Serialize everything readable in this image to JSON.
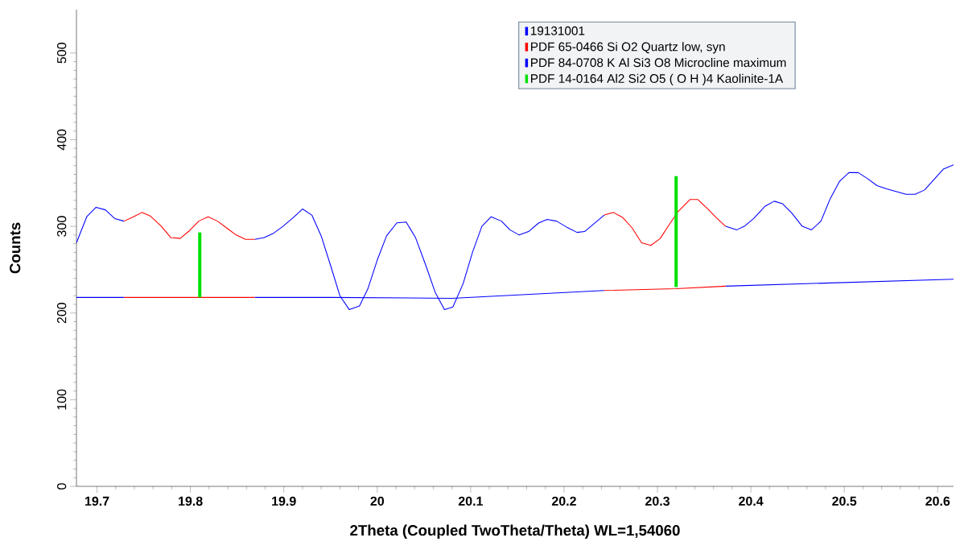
{
  "chart_data": {
    "type": "line",
    "xlabel": "2Theta (Coupled TwoTheta/Theta) WL=1,54060",
    "ylabel": "Counts",
    "xlim": [
      19.678,
      20.617
    ],
    "ylim": [
      0,
      550
    ],
    "xticks": [
      19.7,
      19.8,
      19.9,
      20,
      20.1,
      20.2,
      20.3,
      20.4,
      20.5,
      20.6
    ],
    "yticks": [
      0,
      100,
      200,
      300,
      400,
      500
    ],
    "legend": "top right",
    "series": [
      {
        "name": "19131001",
        "color": "#0000ff",
        "x": [
          19.678,
          19.689,
          19.699,
          19.709,
          19.719,
          19.729,
          19.739,
          19.748,
          19.757,
          19.769,
          19.779,
          19.789,
          19.799,
          19.809,
          19.819,
          19.829,
          19.839,
          19.849,
          19.859,
          19.869,
          19.879,
          19.889,
          19.899,
          19.91,
          19.92,
          19.93,
          19.94,
          19.95,
          19.96,
          19.97,
          19.981,
          19.99,
          20.0,
          20.01,
          20.021,
          20.031,
          20.041,
          20.052,
          20.062,
          20.072,
          20.081,
          20.092,
          20.102,
          20.112,
          20.122,
          20.133,
          20.142,
          20.152,
          20.162,
          20.173,
          20.182,
          20.192,
          20.203,
          20.214,
          20.222,
          20.232,
          20.243,
          20.253,
          20.263,
          20.273,
          20.283,
          20.293,
          20.303,
          20.312,
          20.322,
          20.335,
          20.343,
          20.353,
          20.363,
          20.373,
          20.385,
          20.393,
          20.403,
          20.415,
          20.425,
          20.434,
          20.444,
          20.455,
          20.465,
          20.475,
          20.485,
          20.495,
          20.505,
          20.515,
          20.525,
          20.535,
          20.546,
          20.556,
          20.566,
          20.576,
          20.586,
          20.596,
          20.606,
          20.617
        ],
        "values": [
          281,
          311,
          322,
          319,
          309,
          306,
          null,
          null,
          null,
          null,
          null,
          null,
          null,
          null,
          null,
          null,
          null,
          null,
          null,
          285,
          287,
          292,
          300,
          310,
          320,
          313,
          289,
          255,
          220,
          204,
          208,
          228,
          261,
          289,
          304,
          305,
          287,
          255,
          224,
          204,
          207,
          234,
          270,
          300,
          311,
          306,
          296,
          290,
          294,
          304,
          308,
          306,
          299,
          293,
          294,
          303,
          313,
          null,
          null,
          null,
          null,
          null,
          null,
          null,
          null,
          null,
          null,
          null,
          null,
          300,
          296,
          300,
          309,
          323,
          329,
          326,
          315,
          300,
          296,
          306,
          332,
          352,
          362,
          362,
          355,
          347,
          343,
          340,
          337,
          337,
          342,
          354,
          366,
          371
        ]
      },
      {
        "color": "#0000ff",
        "x": [
          19.678,
          19.729
        ],
        "values": [
          218,
          218
        ]
      },
      {
        "color": "#0000ff",
        "x": [
          19.869,
          19.95,
          20.08,
          20.243
        ],
        "values": [
          218,
          218,
          217,
          226
        ]
      },
      {
        "color": "#0000ff",
        "x": [
          20.373,
          20.617
        ],
        "values": [
          231,
          239
        ]
      },
      {
        "name": "PDF 65-0466 Si O2 Quartz low, syn",
        "color": "#ff0000",
        "x": [
          19.729,
          19.739,
          19.748,
          19.757,
          19.769,
          19.779,
          19.789,
          19.799,
          19.809,
          19.819,
          19.829,
          19.839,
          19.849,
          19.859,
          19.869
        ],
        "values": [
          306,
          311,
          316,
          312,
          300,
          287,
          286,
          295,
          306,
          311,
          306,
          298,
          290,
          285,
          285
        ]
      },
      {
        "color": "#ff0000",
        "x": [
          19.729,
          19.869
        ],
        "values": [
          218,
          218
        ]
      },
      {
        "color": "#ff0000",
        "x": [
          20.243,
          20.253,
          20.263,
          20.273,
          20.283,
          20.293,
          20.303,
          20.312,
          20.322,
          20.335,
          20.343,
          20.353,
          20.363,
          20.373
        ],
        "values": [
          313,
          316,
          310,
          298,
          281,
          278,
          286,
          301,
          317,
          331,
          331,
          321,
          310,
          300
        ]
      },
      {
        "color": "#ff0000",
        "x": [
          20.243,
          20.32,
          20.373
        ],
        "values": [
          226,
          228,
          231
        ]
      },
      {
        "name": "PDF 84-0708 K Al Si3 O8 Microcline maximum",
        "color": "#0000ff"
      },
      {
        "name": "PDF 14-0164 Al2 Si2 O5 ( O H )4 Kaolinite-1A",
        "type": "bar",
        "color": "#00e000",
        "x": [
          19.81,
          20.32
        ],
        "base": [
          218,
          230
        ],
        "values": [
          75,
          128
        ]
      }
    ]
  }
}
